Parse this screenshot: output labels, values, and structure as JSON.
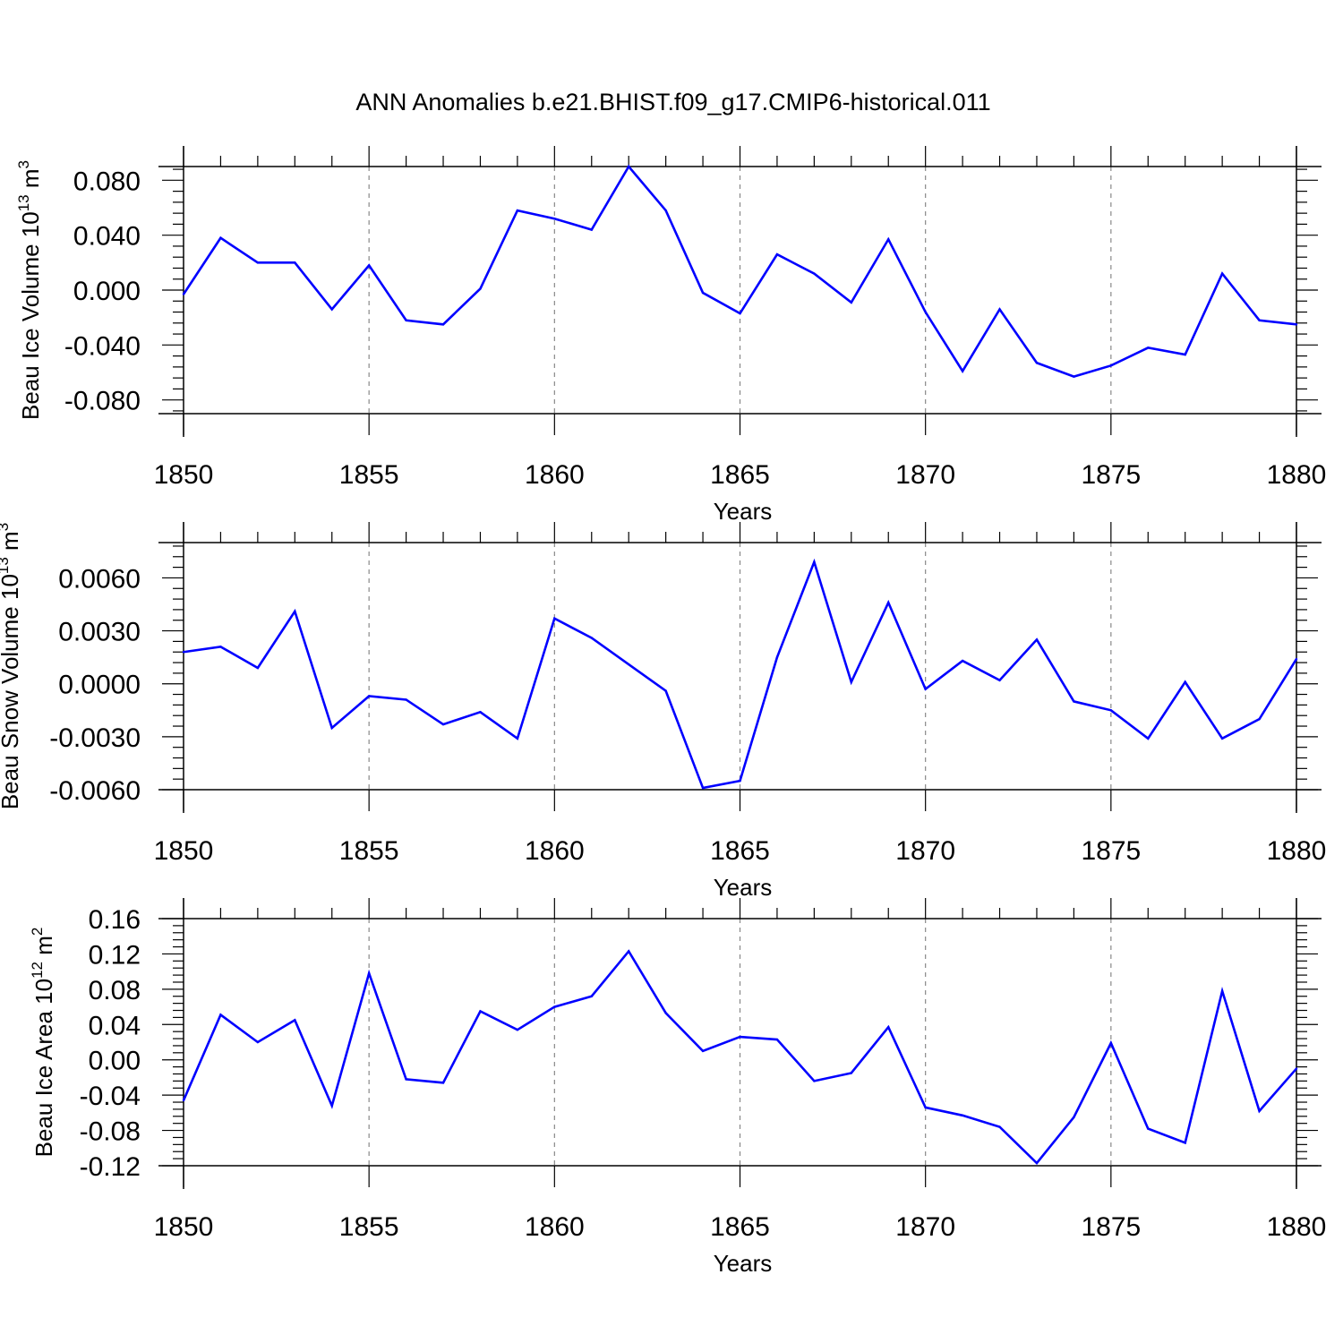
{
  "figure_title": "ANN Anomalies b.e21.BHIST.f09_g17.CMIP6-historical.011",
  "colors": {
    "line": "#0000ff",
    "frame": "#000000",
    "grid": "#888888",
    "background": "#ffffff"
  },
  "chart_data": [
    {
      "type": "line",
      "title": "",
      "xlabel": "Years",
      "ylabel": {
        "main": "Beau Ice Volume 10",
        "exp": "13",
        "unit": " m",
        "unit_exp": "3"
      },
      "x": [
        1850,
        1851,
        1852,
        1853,
        1854,
        1855,
        1856,
        1857,
        1858,
        1859,
        1860,
        1861,
        1862,
        1863,
        1864,
        1865,
        1866,
        1867,
        1868,
        1869,
        1870,
        1871,
        1872,
        1873,
        1874,
        1875,
        1876,
        1877,
        1878,
        1879,
        1880
      ],
      "series": [
        {
          "name": "Beau Ice Volume",
          "values": [
            -0.003,
            0.038,
            0.02,
            0.02,
            -0.014,
            0.018,
            -0.022,
            -0.025,
            0.001,
            0.058,
            0.052,
            0.044,
            0.09,
            0.058,
            -0.002,
            -0.017,
            0.026,
            0.012,
            -0.009,
            0.037,
            -0.016,
            -0.059,
            -0.014,
            -0.053,
            -0.063,
            -0.055,
            -0.042,
            -0.047,
            0.012,
            -0.022,
            -0.025
          ]
        }
      ],
      "xlim": [
        1850,
        1880
      ],
      "ylim": [
        -0.09,
        0.09
      ],
      "xticks": [
        "1850",
        "1855",
        "1860",
        "1865",
        "1870",
        "1875",
        "1880"
      ],
      "yticks": [
        "0.080",
        "0.040",
        "0.000",
        "-0.040",
        "-0.080"
      ]
    },
    {
      "type": "line",
      "title": "",
      "xlabel": "Years",
      "ylabel": {
        "main": "Beau Snow Volume 10",
        "exp": "13",
        "unit": " m",
        "unit_exp": "3"
      },
      "x": [
        1850,
        1851,
        1852,
        1853,
        1854,
        1855,
        1856,
        1857,
        1858,
        1859,
        1860,
        1861,
        1862,
        1863,
        1864,
        1865,
        1866,
        1867,
        1868,
        1869,
        1870,
        1871,
        1872,
        1873,
        1874,
        1875,
        1876,
        1877,
        1878,
        1879,
        1880
      ],
      "series": [
        {
          "name": "Beau Snow Volume",
          "values": [
            0.0018,
            0.0021,
            0.0009,
            0.0041,
            -0.0025,
            -0.0007,
            -0.0009,
            -0.0023,
            -0.0016,
            -0.0031,
            0.0037,
            0.0026,
            0.0011,
            -0.0004,
            -0.0059,
            -0.0055,
            0.0015,
            0.0069,
            0.0001,
            0.0046,
            -0.0003,
            0.0013,
            0.0002,
            0.0025,
            -0.001,
            -0.0015,
            -0.0031,
            0.0001,
            -0.0031,
            -0.002,
            0.0014
          ]
        }
      ],
      "xlim": [
        1850,
        1880
      ],
      "ylim": [
        -0.006,
        0.008
      ],
      "xticks": [
        "1850",
        "1855",
        "1860",
        "1865",
        "1870",
        "1875",
        "1880"
      ],
      "yticks": [
        "0.0060",
        "0.0030",
        "0.0000",
        "-0.0030",
        "-0.0060"
      ]
    },
    {
      "type": "line",
      "title": "",
      "xlabel": "Years",
      "ylabel": {
        "main": "Beau Ice Area 10",
        "exp": "12",
        "unit": " m",
        "unit_exp": "2"
      },
      "x": [
        1850,
        1851,
        1852,
        1853,
        1854,
        1855,
        1856,
        1857,
        1858,
        1859,
        1860,
        1861,
        1862,
        1863,
        1864,
        1865,
        1866,
        1867,
        1868,
        1869,
        1870,
        1871,
        1872,
        1873,
        1874,
        1875,
        1876,
        1877,
        1878,
        1879,
        1880
      ],
      "series": [
        {
          "name": "Beau Ice Area",
          "values": [
            -0.046,
            0.051,
            0.02,
            0.045,
            -0.052,
            0.098,
            -0.022,
            -0.026,
            0.055,
            0.034,
            0.06,
            0.072,
            0.123,
            0.053,
            0.01,
            0.026,
            0.023,
            -0.024,
            -0.015,
            0.037,
            -0.054,
            -0.063,
            -0.076,
            -0.117,
            -0.065,
            0.019,
            -0.078,
            -0.094,
            0.078,
            -0.058,
            -0.01
          ]
        }
      ],
      "xlim": [
        1850,
        1880
      ],
      "ylim": [
        -0.12,
        0.16
      ],
      "xticks": [
        "1850",
        "1855",
        "1860",
        "1865",
        "1870",
        "1875",
        "1880"
      ],
      "yticks": [
        "0.16",
        "0.12",
        "0.08",
        "0.04",
        "0.00",
        "-0.04",
        "-0.08",
        "-0.12"
      ]
    }
  ]
}
